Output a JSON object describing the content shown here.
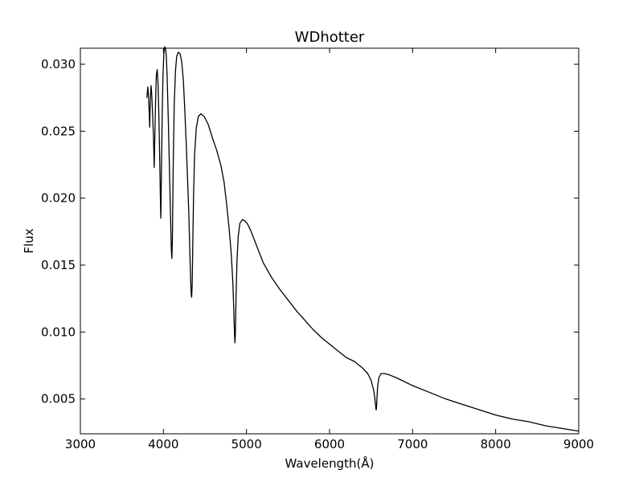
{
  "chart_data": {
    "type": "line",
    "title": "WDhotter",
    "xlabel": "Wavelength(Å)",
    "ylabel": "Flux",
    "xlim": [
      3000,
      9000
    ],
    "ylim": [
      0.0024,
      0.0312
    ],
    "xticks": [
      3000,
      4000,
      5000,
      6000,
      7000,
      8000,
      9000
    ],
    "xtick_labels": [
      "3000",
      "4000",
      "5000",
      "6000",
      "7000",
      "8000",
      "9000"
    ],
    "yticks": [
      0.005,
      0.01,
      0.015,
      0.02,
      0.025,
      0.03
    ],
    "ytick_labels": [
      "0.005",
      "0.010",
      "0.015",
      "0.020",
      "0.025",
      "0.030"
    ],
    "grid": false,
    "legend": "none",
    "line_color": "#000000",
    "series": [
      {
        "x": [
          3800,
          3812,
          3820,
          3830,
          3835,
          3840,
          3845,
          3852,
          3860,
          3870,
          3880,
          3889,
          3898,
          3905,
          3915,
          3925,
          3935,
          3945,
          3955,
          3962,
          3968,
          3970,
          3975,
          3985,
          3995,
          4005,
          4015,
          4025,
          4035,
          4045,
          4060,
          4075,
          4088,
          4096,
          4102,
          4108,
          4118,
          4130,
          4145,
          4160,
          4180,
          4200,
          4220,
          4240,
          4260,
          4275,
          4290,
          4305,
          4318,
          4328,
          4335,
          4340,
          4346,
          4352,
          4362,
          4375,
          4395,
          4420,
          4450,
          4490,
          4540,
          4590,
          4640,
          4690,
          4730,
          4760,
          4790,
          4815,
          4835,
          4848,
          4856,
          4861,
          4866,
          4874,
          4885,
          4900,
          4920,
          4950,
          4980,
          5010,
          5050,
          5100,
          5150,
          5200,
          5300,
          5400,
          5500,
          5600,
          5700,
          5800,
          5900,
          6000,
          6100,
          6200,
          6300,
          6400,
          6460,
          6500,
          6530,
          6545,
          6555,
          6560,
          6563,
          6567,
          6572,
          6580,
          6595,
          6620,
          6660,
          6720,
          6800,
          6900,
          7000,
          7200,
          7400,
          7600,
          7800,
          8000,
          8200,
          8400,
          8600,
          8800,
          9000
        ],
        "y": [
          0.0275,
          0.0283,
          0.0276,
          0.0262,
          0.0253,
          0.0268,
          0.0278,
          0.0284,
          0.0276,
          0.0262,
          0.0246,
          0.0223,
          0.025,
          0.0272,
          0.0292,
          0.0296,
          0.0286,
          0.0262,
          0.023,
          0.0205,
          0.0185,
          0.019,
          0.0215,
          0.0262,
          0.0292,
          0.0308,
          0.0313,
          0.0312,
          0.0306,
          0.029,
          0.0255,
          0.0215,
          0.018,
          0.016,
          0.0155,
          0.017,
          0.0225,
          0.027,
          0.0295,
          0.0306,
          0.0309,
          0.0308,
          0.0302,
          0.0288,
          0.0262,
          0.024,
          0.0215,
          0.019,
          0.016,
          0.0138,
          0.0128,
          0.0126,
          0.0135,
          0.016,
          0.02,
          0.0232,
          0.0252,
          0.0261,
          0.0263,
          0.0261,
          0.0255,
          0.0245,
          0.0236,
          0.0225,
          0.0212,
          0.0196,
          0.0178,
          0.016,
          0.0138,
          0.0115,
          0.0098,
          0.0092,
          0.0098,
          0.0125,
          0.0152,
          0.0171,
          0.0181,
          0.0184,
          0.0183,
          0.0181,
          0.0176,
          0.0168,
          0.016,
          0.0152,
          0.0141,
          0.0132,
          0.0124,
          0.0116,
          0.0109,
          0.0102,
          0.0096,
          0.0091,
          0.0086,
          0.0081,
          0.0078,
          0.0073,
          0.0069,
          0.0064,
          0.0057,
          0.0051,
          0.0045,
          0.0042,
          0.0042,
          0.0045,
          0.0052,
          0.006,
          0.0066,
          0.0069,
          0.0069,
          0.0068,
          0.0066,
          0.0063,
          0.006,
          0.0055,
          0.005,
          0.0046,
          0.0042,
          0.0038,
          0.0035,
          0.0033,
          0.003,
          0.0028,
          0.0026
        ]
      }
    ]
  }
}
